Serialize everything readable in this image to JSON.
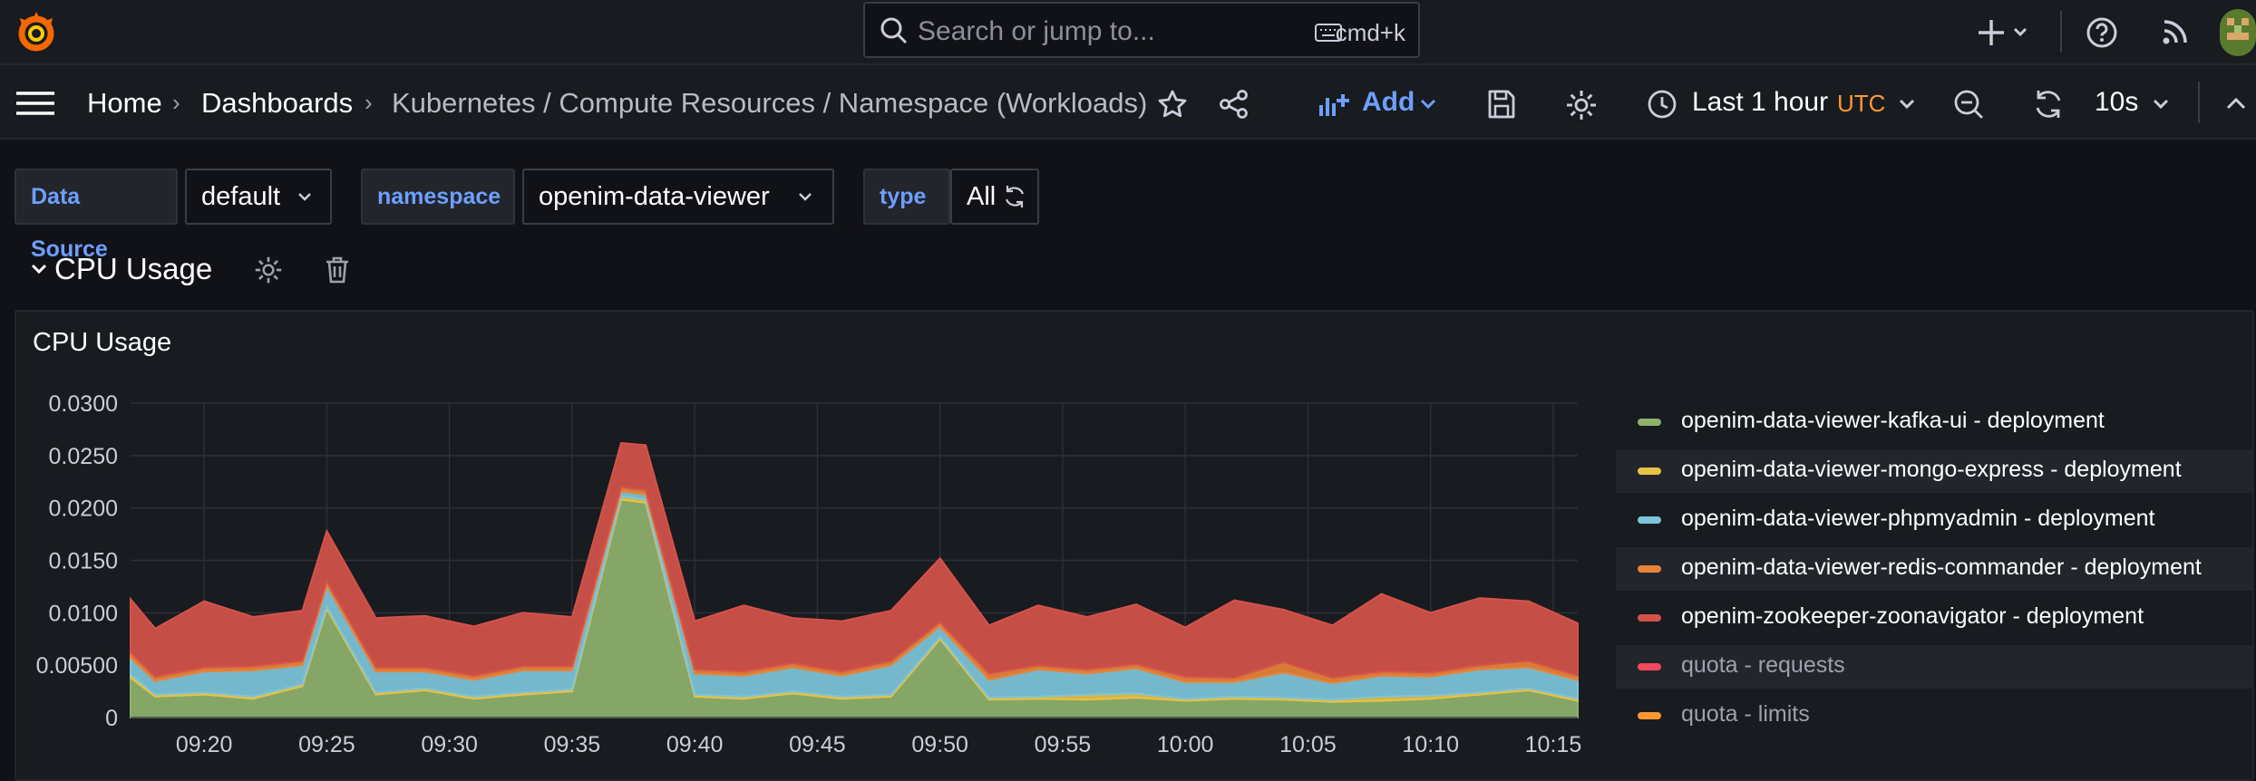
{
  "topbar": {
    "search_placeholder": "Search or jump to...",
    "shortcut": "cmd+k"
  },
  "breadcrumb": {
    "home": "Home",
    "dashboards": "Dashboards",
    "current": "Kubernetes / Compute Resources / Namespace (Workloads)"
  },
  "toolbar": {
    "add_label": "Add",
    "time_range": "Last 1 hour",
    "timezone": "UTC",
    "refresh_interval": "10s"
  },
  "variables": [
    {
      "label": "Data Source",
      "value": "default"
    },
    {
      "label": "namespace",
      "value": "openim-data-viewer"
    },
    {
      "label": "type",
      "value": "All"
    }
  ],
  "row": {
    "title": "CPU Usage"
  },
  "panel": {
    "title": "CPU Usage"
  },
  "legend": [
    {
      "label": "openim-data-viewer-kafka-ui - deployment",
      "color": "#8fb26c",
      "dimmed": false
    },
    {
      "label": "openim-data-viewer-mongo-express - deployment",
      "color": "#e8c245",
      "dimmed": false
    },
    {
      "label": "openim-data-viewer-phpmyadmin - deployment",
      "color": "#7ec4da",
      "dimmed": false
    },
    {
      "label": "openim-data-viewer-redis-commander - deployment",
      "color": "#e8833a",
      "dimmed": false
    },
    {
      "label": "openim-zookeeper-zoonavigator - deployment",
      "color": "#d5524a",
      "dimmed": false
    },
    {
      "label": "quota - requests",
      "color": "#f2495c",
      "dimmed": true
    },
    {
      "label": "quota - limits",
      "color": "#ff9830",
      "dimmed": true
    }
  ],
  "chart_data": {
    "type": "area",
    "stacked": true,
    "ylim": [
      0,
      0.03
    ],
    "y_ticks": [
      "0",
      "0.00500",
      "0.0100",
      "0.0150",
      "0.0200",
      "0.0250",
      "0.0300"
    ],
    "x_ticks": [
      "09:20",
      "09:25",
      "09:30",
      "09:35",
      "09:40",
      "09:45",
      "09:50",
      "09:55",
      "10:00",
      "10:05",
      "10:10",
      "10:15"
    ],
    "x_start": "09:17",
    "x_end": "10:16",
    "grid": true,
    "legend_position": "right",
    "x": [
      "09:17",
      "09:18",
      "09:20",
      "09:22",
      "09:24",
      "09:25",
      "09:27",
      "09:29",
      "09:31",
      "09:33",
      "09:35",
      "09:37",
      "09:38",
      "09:40",
      "09:42",
      "09:44",
      "09:46",
      "09:48",
      "09:50",
      "09:52",
      "09:54",
      "09:56",
      "09:58",
      "10:00",
      "10:02",
      "10:04",
      "10:06",
      "10:08",
      "10:10",
      "10:12",
      "10:14",
      "10:16"
    ],
    "series": [
      {
        "name": "openim-data-viewer-kafka-ui - deployment",
        "values": [
          0.0038,
          0.002,
          0.0022,
          0.0018,
          0.003,
          0.0104,
          0.0022,
          0.0026,
          0.0018,
          0.0022,
          0.0025,
          0.0208,
          0.0205,
          0.002,
          0.0018,
          0.0023,
          0.0018,
          0.002,
          0.0075,
          0.0017,
          0.0018,
          0.0017,
          0.0019,
          0.0016,
          0.0018,
          0.0017,
          0.0015,
          0.0016,
          0.0018,
          0.0022,
          0.0026,
          0.0016
        ]
      },
      {
        "name": "openim-data-viewer-mongo-express - deployment",
        "values": [
          0.0003,
          0.0002,
          0.0002,
          0.0002,
          0.0002,
          0.0002,
          0.0002,
          0.0002,
          0.0002,
          0.0002,
          0.0002,
          0.0003,
          0.0003,
          0.0002,
          0.0002,
          0.0002,
          0.0002,
          0.0002,
          0.0002,
          0.0002,
          0.0002,
          0.0005,
          0.0004,
          0.0002,
          0.0002,
          0.0002,
          0.0002,
          0.0004,
          0.0003,
          0.0002,
          0.0002,
          0.0002
        ]
      },
      {
        "name": "openim-data-viewer-phpmyadmin - deployment",
        "values": [
          0.0016,
          0.0013,
          0.002,
          0.0025,
          0.0018,
          0.002,
          0.002,
          0.0016,
          0.0016,
          0.0021,
          0.0018,
          0.0005,
          0.0005,
          0.002,
          0.002,
          0.0023,
          0.002,
          0.0028,
          0.001,
          0.0017,
          0.0026,
          0.002,
          0.0024,
          0.0016,
          0.0014,
          0.0024,
          0.0016,
          0.002,
          0.0018,
          0.0022,
          0.002,
          0.0018
        ]
      },
      {
        "name": "openim-data-viewer-redis-commander - deployment",
        "values": [
          0.0005,
          0.0004,
          0.0004,
          0.0004,
          0.0004,
          0.0004,
          0.0004,
          0.0004,
          0.0004,
          0.0004,
          0.0004,
          0.0004,
          0.0004,
          0.0004,
          0.0004,
          0.0004,
          0.0004,
          0.0004,
          0.0004,
          0.0006,
          0.0004,
          0.0004,
          0.0004,
          0.0005,
          0.0004,
          0.001,
          0.0005,
          0.0004,
          0.0004,
          0.0004,
          0.0006,
          0.0004
        ]
      },
      {
        "name": "openim-zookeeper-zoonavigator - deployment",
        "values": [
          0.0051,
          0.0046,
          0.0063,
          0.0047,
          0.0048,
          0.0048,
          0.0047,
          0.0049,
          0.0047,
          0.0051,
          0.0047,
          0.0042,
          0.0043,
          0.0046,
          0.0063,
          0.0043,
          0.0048,
          0.0048,
          0.0061,
          0.0046,
          0.0057,
          0.005,
          0.0057,
          0.0047,
          0.0074,
          0.005,
          0.005,
          0.0074,
          0.0057,
          0.0064,
          0.0057,
          0.005
        ]
      }
    ]
  }
}
